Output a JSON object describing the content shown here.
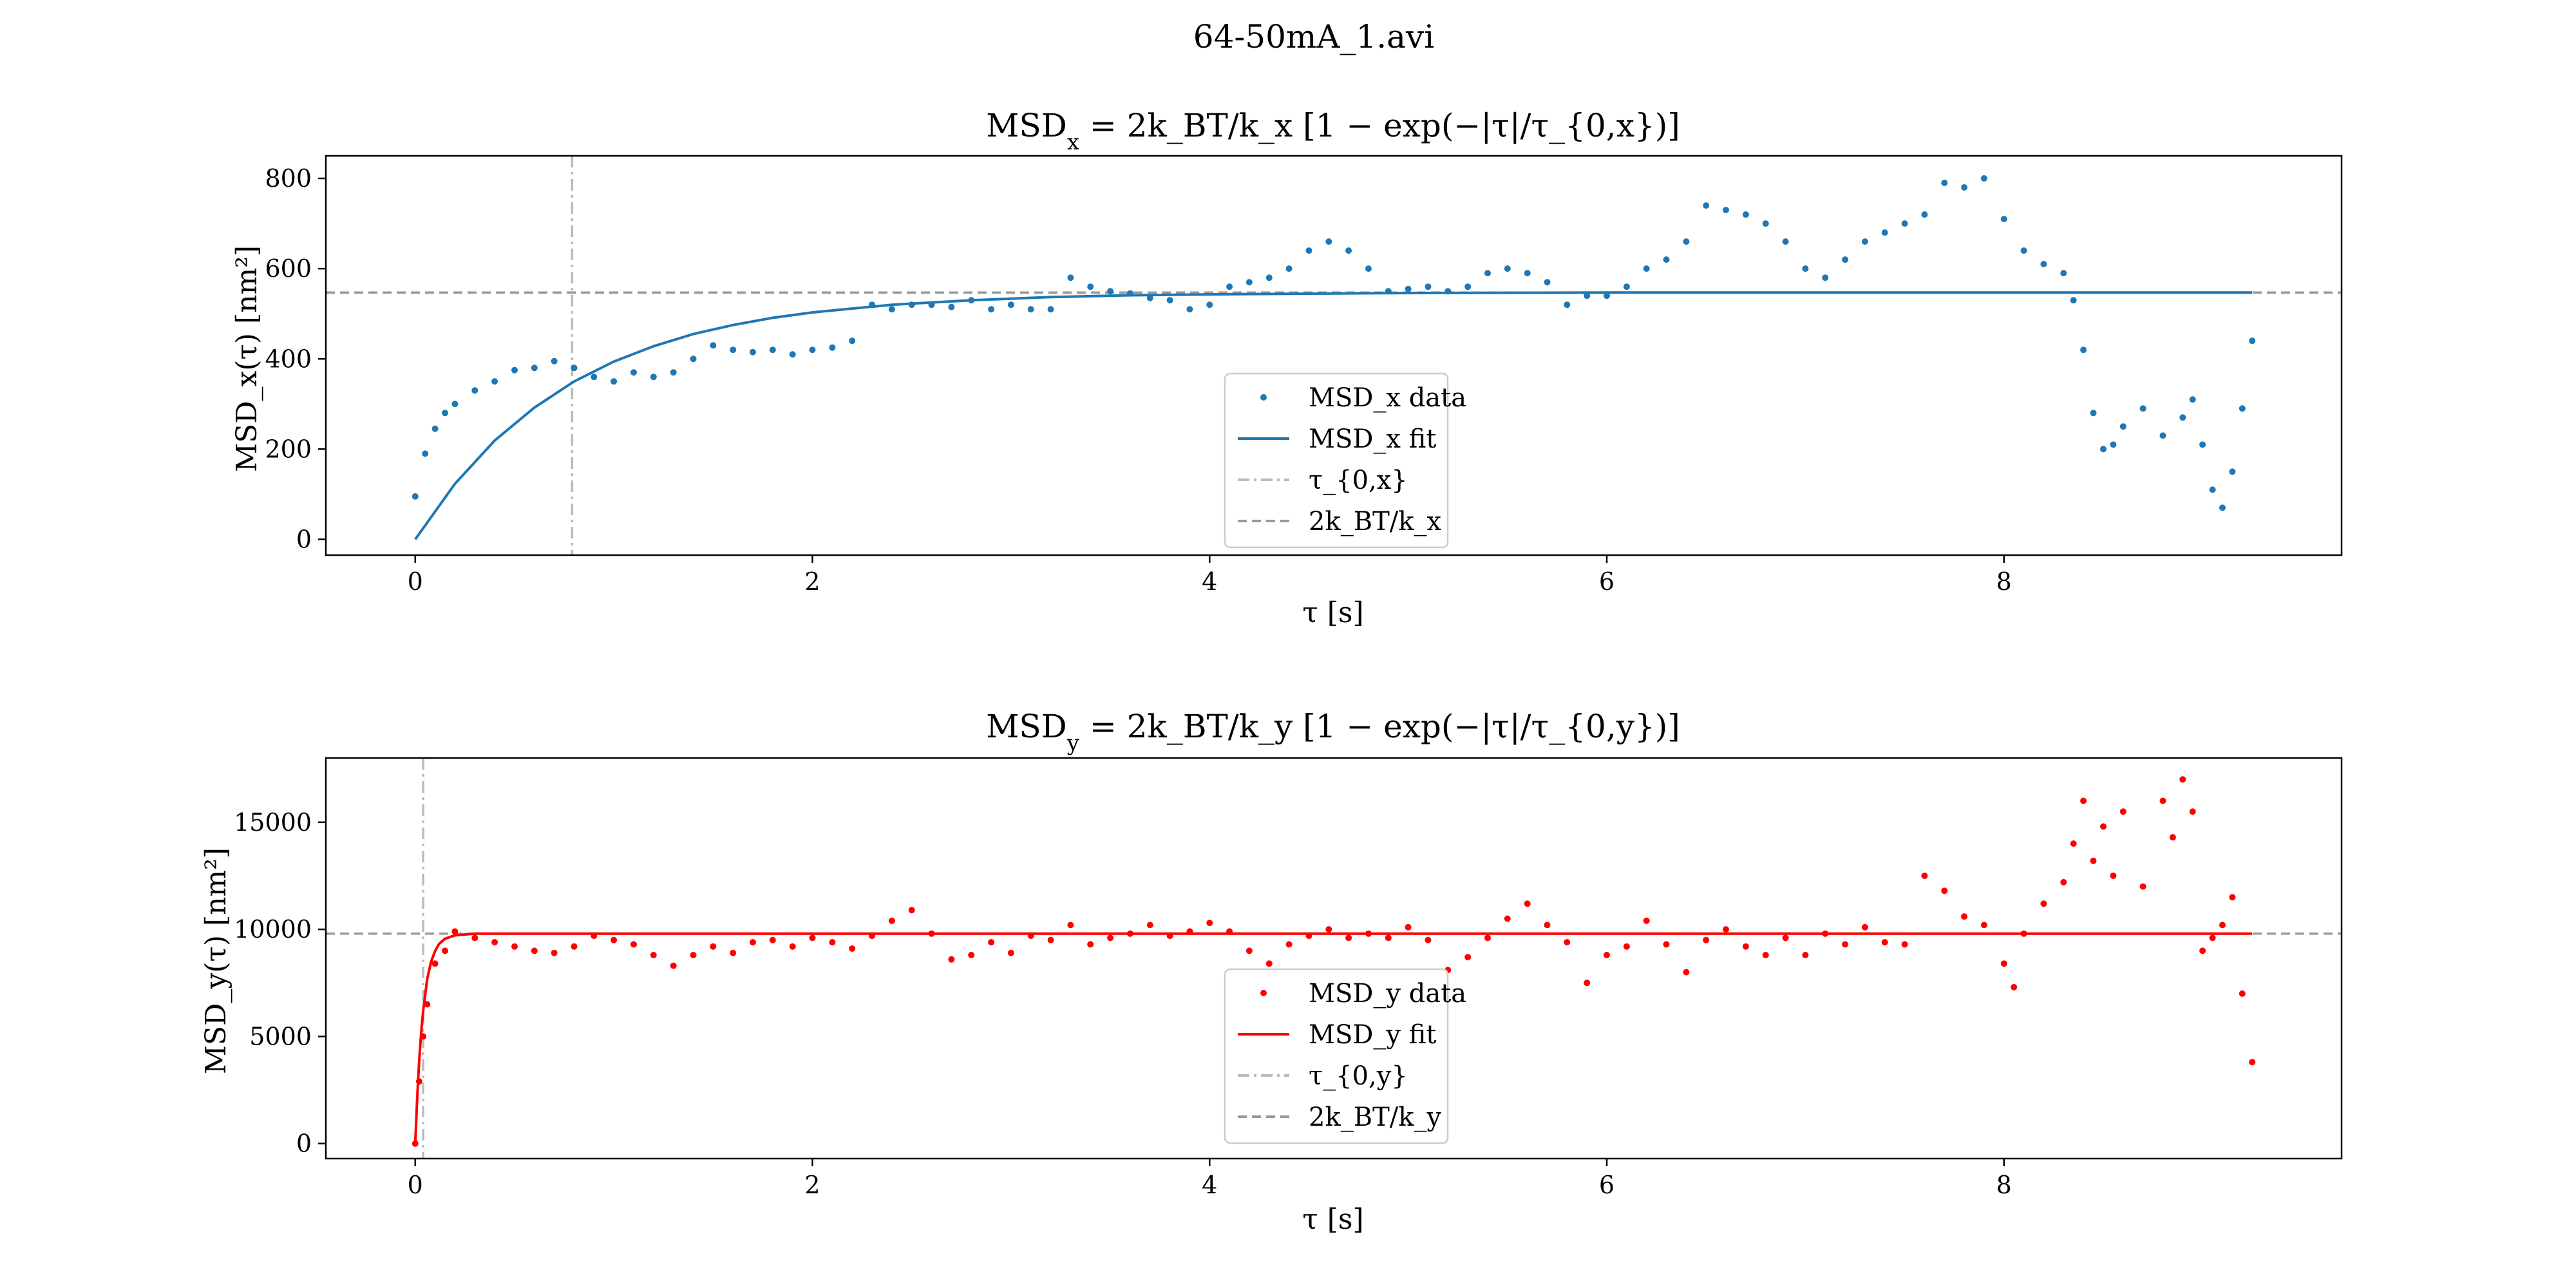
{
  "figure": {
    "suptitle": "64-50mA_1.avi"
  },
  "chart_data": [
    {
      "type": "scatter",
      "title_main": "MSD",
      "title_sub": "x",
      "title_formula": " = 2k_BT/k_x [1 − exp(−|τ|/τ_{0,x})]",
      "xlabel": "τ [s]",
      "ylabel": "MSD_x(τ) [nm²]",
      "xlim": [
        -0.45,
        9.7
      ],
      "ylim": [
        -35,
        850
      ],
      "xticks": [
        0,
        2,
        4,
        6,
        8
      ],
      "yticks": [
        0,
        200,
        400,
        600,
        800
      ],
      "color": "#1f77b4",
      "plateau": 547,
      "tau0": 0.79,
      "legend": {
        "placement": "lower-center",
        "entries": [
          {
            "label": "MSD_x data",
            "kind": "marker",
            "color": "#1f77b4"
          },
          {
            "label": "MSD_x fit",
            "kind": "line",
            "color": "#1f77b4"
          },
          {
            "label": "τ_{0,x}",
            "kind": "dashdot",
            "color": "#bbbbbb"
          },
          {
            "label": "2k_BT/k_x",
            "kind": "dashed",
            "color": "#999999"
          }
        ]
      },
      "series": [
        {
          "kind": "data",
          "x": [
            0,
            0.05,
            0.1,
            0.15,
            0.2,
            0.3,
            0.4,
            0.5,
            0.6,
            0.7,
            0.8,
            0.9,
            1.0,
            1.1,
            1.2,
            1.3,
            1.4,
            1.5,
            1.6,
            1.7,
            1.8,
            1.9,
            2.0,
            2.1,
            2.2,
            2.3,
            2.4,
            2.5,
            2.6,
            2.7,
            2.8,
            2.9,
            3.0,
            3.1,
            3.2,
            3.3,
            3.4,
            3.5,
            3.6,
            3.7,
            3.8,
            3.9,
            4.0,
            4.1,
            4.2,
            4.3,
            4.4,
            4.5,
            4.6,
            4.7,
            4.8,
            4.9,
            5.0,
            5.1,
            5.2,
            5.3,
            5.4,
            5.5,
            5.6,
            5.7,
            5.8,
            5.9,
            6.0,
            6.1,
            6.2,
            6.3,
            6.4,
            6.5,
            6.6,
            6.7,
            6.8,
            6.9,
            7.0,
            7.1,
            7.2,
            7.3,
            7.4,
            7.5,
            7.6,
            7.7,
            7.8,
            7.9,
            8.0,
            8.1,
            8.2,
            8.3,
            8.35,
            8.4,
            8.45,
            8.5,
            8.55,
            8.6,
            8.7,
            8.8,
            8.9,
            8.95,
            9.0,
            9.05,
            9.1,
            9.15,
            9.2,
            9.25
          ],
          "y": [
            95,
            190,
            245,
            280,
            300,
            330,
            350,
            375,
            380,
            395,
            380,
            360,
            350,
            370,
            360,
            370,
            400,
            430,
            420,
            415,
            420,
            410,
            420,
            425,
            440,
            520,
            510,
            520,
            520,
            515,
            530,
            510,
            520,
            510,
            510,
            580,
            560,
            550,
            545,
            535,
            530,
            510,
            520,
            560,
            570,
            580,
            600,
            640,
            660,
            640,
            600,
            550,
            555,
            560,
            550,
            560,
            590,
            600,
            590,
            570,
            520,
            540,
            540,
            560,
            600,
            620,
            660,
            740,
            730,
            720,
            700,
            660,
            600,
            580,
            620,
            660,
            680,
            700,
            720,
            790,
            780,
            800,
            710,
            640,
            610,
            590,
            530,
            420,
            280,
            200,
            210,
            250,
            290,
            230,
            270,
            310,
            210,
            110,
            70,
            150,
            290,
            440
          ]
        },
        {
          "kind": "fit",
          "x": [
            0,
            0.2,
            0.4,
            0.6,
            0.8,
            1.0,
            1.2,
            1.4,
            1.6,
            1.8,
            2.0,
            2.4,
            2.8,
            3.2,
            3.6,
            4.0,
            5.0,
            6.0,
            7.0,
            8.0,
            9.0,
            9.25
          ],
          "y": [
            0,
            123,
            219,
            292,
            350,
            394,
            428,
            455,
            475,
            491,
            503,
            520,
            530,
            537,
            541,
            543,
            546,
            547,
            547,
            547,
            547,
            547
          ]
        }
      ]
    },
    {
      "type": "scatter",
      "title_main": "MSD",
      "title_sub": "y",
      "title_formula": " = 2k_BT/k_y [1 − exp(−|τ|/τ_{0,y})]",
      "xlabel": "τ [s]",
      "ylabel": "MSD_y(τ) [nm²]",
      "xlim": [
        -0.45,
        9.7
      ],
      "ylim": [
        -700,
        18000
      ],
      "xticks": [
        0,
        2,
        4,
        6,
        8
      ],
      "yticks": [
        0,
        5000,
        10000,
        15000
      ],
      "color": "#ff0000",
      "plateau": 9800,
      "tau0": 0.04,
      "legend": {
        "placement": "lower-center",
        "entries": [
          {
            "label": "MSD_y data",
            "kind": "marker",
            "color": "#ff0000"
          },
          {
            "label": "MSD_y fit",
            "kind": "line",
            "color": "#ff0000"
          },
          {
            "label": "τ_{0,y}",
            "kind": "dashdot",
            "color": "#bbbbbb"
          },
          {
            "label": "2k_BT/k_y",
            "kind": "dashed",
            "color": "#999999"
          }
        ]
      },
      "series": [
        {
          "kind": "data",
          "x": [
            0,
            0.02,
            0.04,
            0.06,
            0.1,
            0.15,
            0.2,
            0.3,
            0.4,
            0.5,
            0.6,
            0.7,
            0.8,
            0.9,
            1.0,
            1.1,
            1.2,
            1.3,
            1.4,
            1.5,
            1.6,
            1.7,
            1.8,
            1.9,
            2.0,
            2.1,
            2.2,
            2.3,
            2.4,
            2.5,
            2.6,
            2.7,
            2.8,
            2.9,
            3.0,
            3.1,
            3.2,
            3.3,
            3.4,
            3.5,
            3.6,
            3.7,
            3.8,
            3.9,
            4.0,
            4.1,
            4.2,
            4.3,
            4.4,
            4.5,
            4.6,
            4.7,
            4.8,
            4.9,
            5.0,
            5.1,
            5.2,
            5.3,
            5.4,
            5.5,
            5.6,
            5.7,
            5.8,
            5.9,
            6.0,
            6.1,
            6.2,
            6.3,
            6.4,
            6.5,
            6.6,
            6.7,
            6.8,
            6.9,
            7.0,
            7.1,
            7.2,
            7.3,
            7.4,
            7.5,
            7.6,
            7.7,
            7.8,
            7.9,
            8.0,
            8.05,
            8.1,
            8.2,
            8.3,
            8.35,
            8.4,
            8.45,
            8.5,
            8.55,
            8.6,
            8.7,
            8.8,
            8.85,
            8.9,
            8.95,
            9.0,
            9.05,
            9.1,
            9.15,
            9.2,
            9.25
          ],
          "y": [
            0,
            2900,
            5000,
            6500,
            8400,
            9000,
            9900,
            9600,
            9400,
            9200,
            9000,
            8900,
            9200,
            9700,
            9500,
            9300,
            8800,
            8300,
            8800,
            9200,
            8900,
            9400,
            9500,
            9200,
            9600,
            9400,
            9100,
            9700,
            10400,
            10900,
            9800,
            8600,
            8800,
            9400,
            8900,
            9700,
            9500,
            10200,
            9300,
            9600,
            9800,
            10200,
            9700,
            9900,
            10300,
            9900,
            9000,
            8400,
            9300,
            9700,
            10000,
            9600,
            9800,
            9600,
            10100,
            9500,
            8100,
            8700,
            9600,
            10500,
            11200,
            10200,
            9400,
            7500,
            8800,
            9200,
            10400,
            9300,
            8000,
            9500,
            10000,
            9200,
            8800,
            9600,
            8800,
            9800,
            9300,
            10100,
            9400,
            9300,
            12500,
            11800,
            10600,
            10200,
            8400,
            7300,
            9800,
            11200,
            12200,
            14000,
            16000,
            13200,
            14800,
            12500,
            15500,
            12000,
            16000,
            14300,
            17000,
            15500,
            9000,
            9600,
            10200,
            11500,
            7000,
            3800
          ]
        },
        {
          "kind": "fit",
          "x": [
            0,
            0.01,
            0.02,
            0.03,
            0.04,
            0.06,
            0.08,
            0.1,
            0.12,
            0.15,
            0.2,
            0.3,
            1.0,
            3.0,
            6.0,
            9.25
          ],
          "y": [
            0,
            2170,
            3860,
            5180,
            6190,
            7670,
            8490,
            8990,
            9320,
            9560,
            9720,
            9800,
            9800,
            9800,
            9800,
            9800
          ]
        }
      ]
    }
  ]
}
